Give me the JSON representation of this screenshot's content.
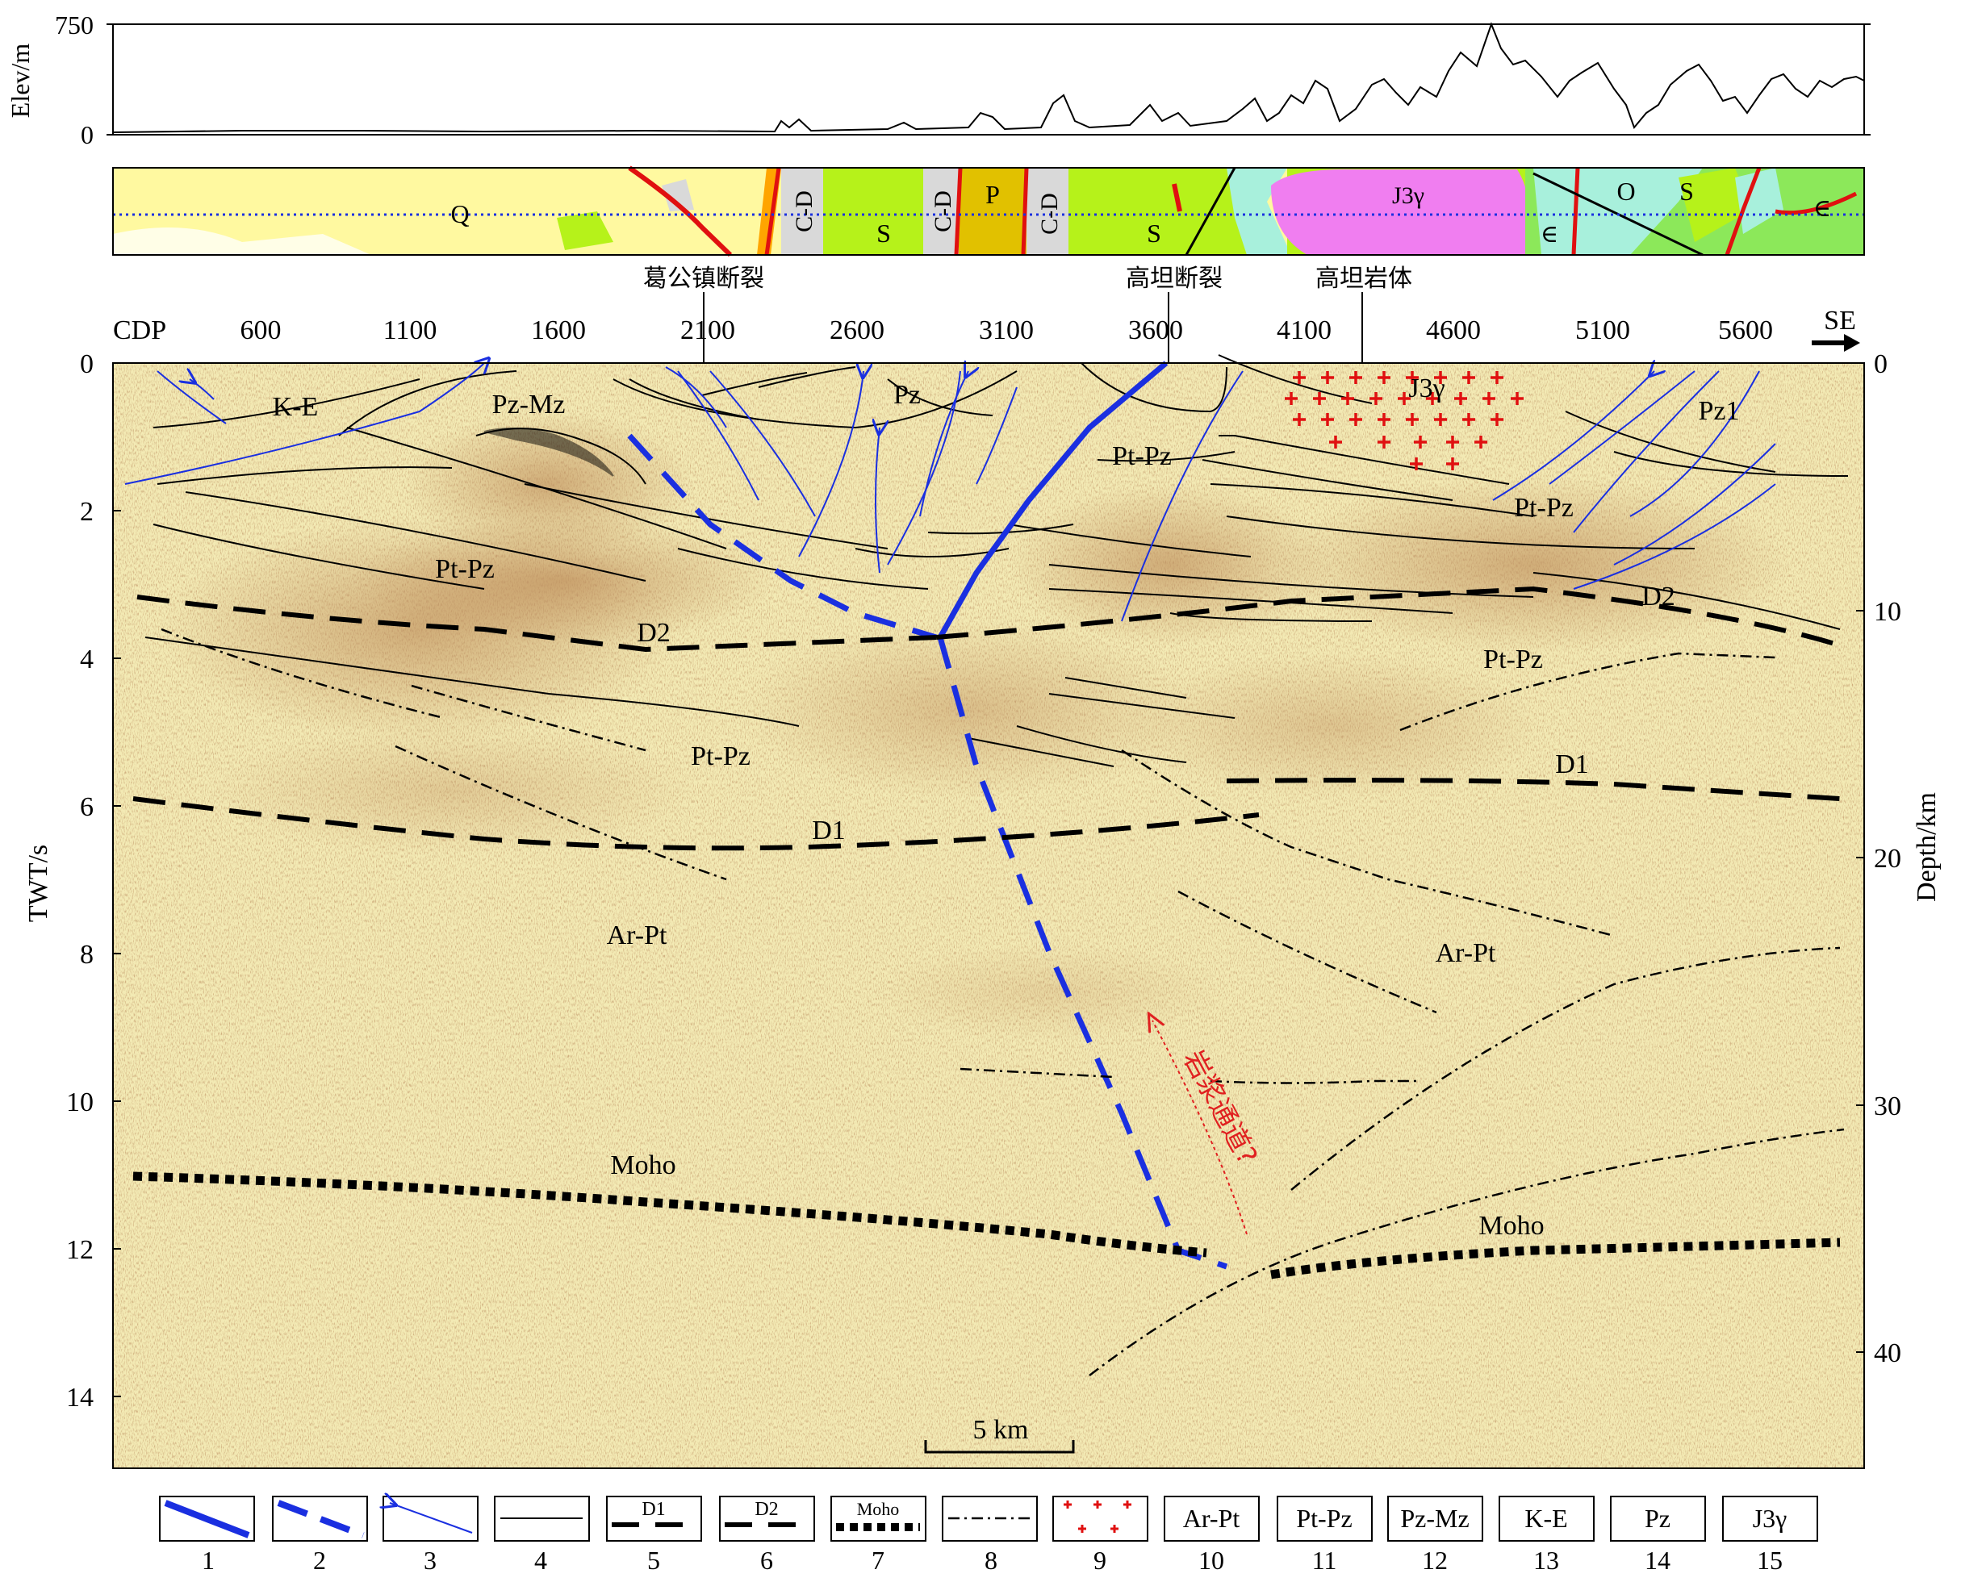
{
  "elevation": {
    "axis_label": "Elev/m",
    "ticks": [
      "750",
      "0"
    ]
  },
  "geology_strip": {
    "units": [
      "Q",
      "C-D",
      "S",
      "C-D",
      "P",
      "C-D",
      "S",
      "J3γ",
      "∈",
      "O",
      "S",
      "∈"
    ],
    "colors": {
      "Q": "#fff9a0",
      "C-D": "#d9d9d9",
      "S": "#b6f21a",
      "P": "#e1c100",
      "J3γ": "#f07ef0",
      "∈": "#8ce85a",
      "O": "#a8f0dc",
      "fault": "#e01010"
    }
  },
  "place_names": {
    "gegong_fault": "葛公镇断裂",
    "gaotan_fault": "高坦断裂",
    "gaotan_pluton": "高坦岩体"
  },
  "section": {
    "cdp_label": "CDP",
    "direction": "SE",
    "cdp_ticks": [
      "600",
      "1100",
      "1600",
      "2100",
      "2600",
      "3100",
      "3600",
      "4100",
      "4600",
      "5100",
      "5600"
    ],
    "twt_label": "TWT/s",
    "twt_ticks": [
      "0",
      "2",
      "4",
      "6",
      "8",
      "10",
      "12",
      "14"
    ],
    "depth_label": "Depth/km",
    "depth_ticks": [
      "0",
      "10",
      "20",
      "30",
      "40"
    ],
    "scale_bar": "5 km",
    "magma_channel": "岩浆通道?",
    "labels": {
      "ke": "K-E",
      "pzmz": "Pz-Mz",
      "pz": "Pz",
      "ptpz_top": "Pt-Pz",
      "j3g": "J3γ",
      "pz1": "Pz1",
      "ptpz_left": "Pt-Pz",
      "ptpz_right_top": "Pt-Pz",
      "d2_left": "D2",
      "d2_right": "D2",
      "ptpz_right_mid": "Pt-Pz",
      "ptpz_mid": "Pt-Pz",
      "d1_right": "D1",
      "d1_left": "D1",
      "arpt_left": "Ar-Pt",
      "arpt_right": "Ar-Pt",
      "moho_left": "Moho",
      "moho_right": "Moho"
    }
  },
  "legend": [
    {
      "number": "1",
      "symbol": "thick-blue-line"
    },
    {
      "number": "2",
      "symbol": "dashed-blue-line"
    },
    {
      "number": "3",
      "symbol": "thin-blue-arrow"
    },
    {
      "number": "4",
      "symbol": "thin-black-line"
    },
    {
      "number": "5",
      "symbol": "dashed-black-line",
      "text": "D1"
    },
    {
      "number": "6",
      "symbol": "dashed-black-line",
      "text": "D2"
    },
    {
      "number": "7",
      "symbol": "dotted-black-line",
      "text": "Moho"
    },
    {
      "number": "8",
      "symbol": "dash-dot-line"
    },
    {
      "number": "9",
      "symbol": "red-crosses"
    },
    {
      "number": "10",
      "symbol": "text-box",
      "text": "Ar-Pt"
    },
    {
      "number": "11",
      "symbol": "text-box",
      "text": "Pt-Pz"
    },
    {
      "number": "12",
      "symbol": "text-box",
      "text": "Pz-Mz"
    },
    {
      "number": "13",
      "symbol": "text-box",
      "text": "K-E"
    },
    {
      "number": "14",
      "symbol": "text-box",
      "text": "Pz"
    },
    {
      "number": "15",
      "symbol": "text-box",
      "text": "J3γ"
    }
  ]
}
